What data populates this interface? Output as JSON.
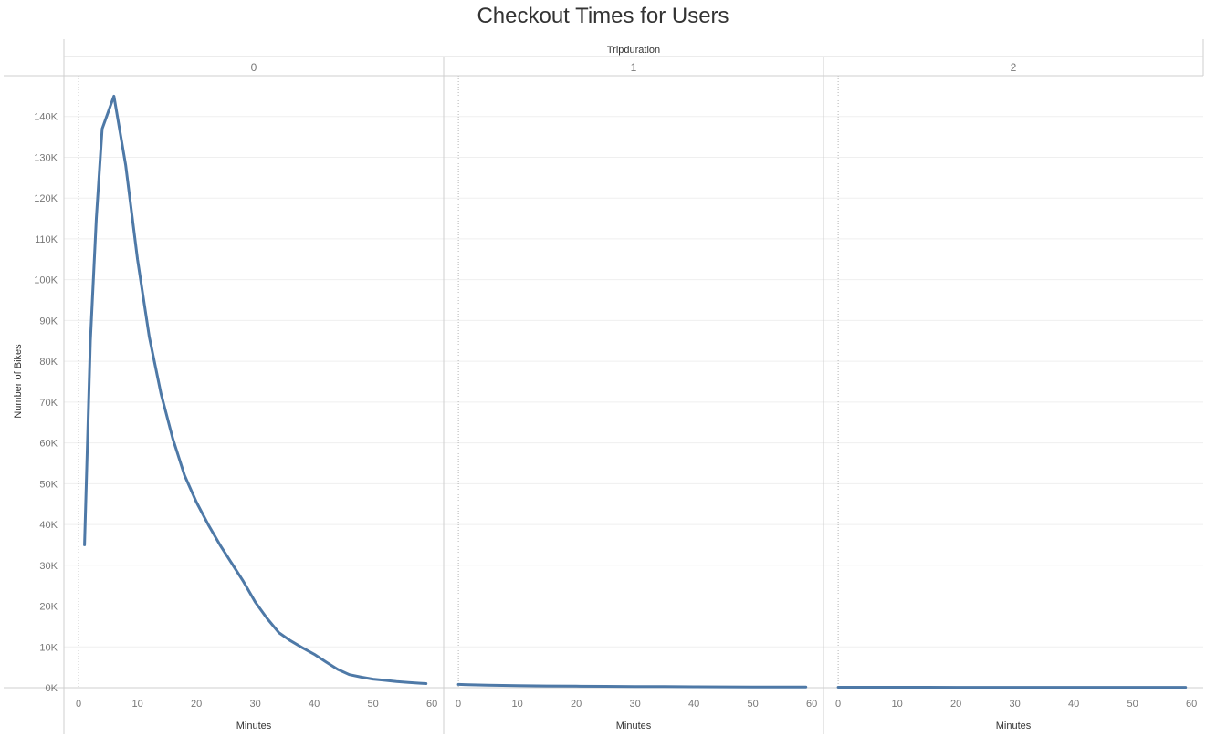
{
  "chart_data": {
    "type": "line",
    "title": "Checkout Times for Users",
    "column_header": "Tripduration",
    "ylabel": "Number of Bikes",
    "xlabel": "Minutes",
    "ylim": [
      0,
      150000
    ],
    "y_ticks": [
      0,
      10000,
      20000,
      30000,
      40000,
      50000,
      60000,
      70000,
      80000,
      90000,
      100000,
      110000,
      120000,
      130000,
      140000
    ],
    "y_tick_labels": [
      "0K",
      "10K",
      "20K",
      "30K",
      "40K",
      "50K",
      "60K",
      "70K",
      "80K",
      "90K",
      "100K",
      "110K",
      "120K",
      "130K",
      "140K"
    ],
    "xlim": [
      -2.5,
      62
    ],
    "x_ticks": [
      0,
      10,
      20,
      30,
      40,
      50,
      60
    ],
    "x_tick_labels": [
      "0",
      "10",
      "20",
      "30",
      "40",
      "50",
      "60"
    ],
    "line_color": "#4e79a7",
    "panels": [
      {
        "label": "0",
        "x": [
          1,
          2,
          3,
          4,
          6,
          8,
          10,
          12,
          14,
          16,
          18,
          20,
          22,
          24,
          26,
          28,
          30,
          32,
          34,
          36,
          38,
          40,
          42,
          44,
          46,
          48,
          50,
          52,
          54,
          56,
          58,
          59
        ],
        "y": [
          35000,
          85000,
          115000,
          137000,
          145000,
          128000,
          105000,
          86000,
          72000,
          61000,
          52000,
          45500,
          40000,
          35000,
          30500,
          26000,
          21000,
          17000,
          13500,
          11500,
          9800,
          8200,
          6300,
          4500,
          3200,
          2600,
          2100,
          1800,
          1500,
          1300,
          1100,
          1000
        ]
      },
      {
        "label": "1",
        "x": [
          0,
          5,
          10,
          15,
          20,
          25,
          30,
          35,
          40,
          45,
          50,
          55,
          59
        ],
        "y": [
          800,
          600,
          500,
          430,
          380,
          330,
          290,
          260,
          230,
          200,
          180,
          160,
          150
        ]
      },
      {
        "label": "2",
        "x": [
          0,
          10,
          20,
          30,
          40,
          50,
          59
        ],
        "y": [
          120,
          110,
          100,
          95,
          90,
          85,
          80
        ]
      }
    ]
  }
}
